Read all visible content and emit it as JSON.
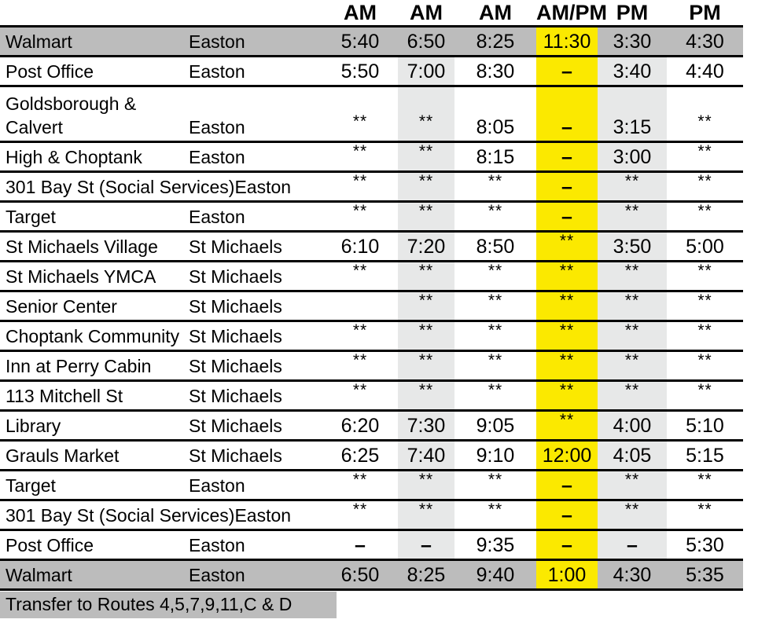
{
  "table": {
    "headers": [
      "AM",
      "AM",
      "AM",
      "AM/PM",
      "PM",
      "PM"
    ],
    "highlight_column_index": 3,
    "shaded_column_indexes": [
      1,
      4
    ],
    "rows": [
      {
        "stop": "Walmart",
        "town": "Easton",
        "times": [
          "5:40",
          "6:50",
          "8:25",
          "11:30",
          "3:30",
          "4:30"
        ],
        "highlight": true
      },
      {
        "stop": "Post Office",
        "town": "Easton",
        "times": [
          "5:50",
          "7:00",
          "8:30",
          "–",
          "3:40",
          "4:40"
        ]
      },
      {
        "stop": "Goldsborough &\nCalvert",
        "town": "Easton",
        "times": [
          "**",
          "**",
          "8:05",
          "–",
          "3:15",
          "**"
        ],
        "twoline": true
      },
      {
        "stop": "High & Choptank",
        "town": "Easton",
        "times": [
          "**",
          "**",
          "8:15",
          "–",
          "3:00",
          "**"
        ]
      },
      {
        "stop": "301 Bay St (Social Services)",
        "town": "Easton",
        "times": [
          "**",
          "**",
          "**",
          "–",
          "**",
          "**"
        ]
      },
      {
        "stop": "Target",
        "town": "Easton",
        "times": [
          "**",
          "**",
          "**",
          "–",
          "**",
          "**"
        ]
      },
      {
        "stop": "St Michaels Village",
        "town": "St Michaels",
        "times": [
          "6:10",
          "7:20",
          "8:50",
          "**",
          "3:50",
          "5:00"
        ]
      },
      {
        "stop": "St Michaels YMCA",
        "town": "St Michaels",
        "times": [
          "**",
          "**",
          "**",
          "**",
          "**",
          "**"
        ]
      },
      {
        "stop": "Senior Center",
        "town": "St Michaels",
        "times": [
          "",
          "**",
          "**",
          "**",
          "**",
          "**"
        ]
      },
      {
        "stop": "Choptank Community",
        "town": "St Michaels",
        "times": [
          "**",
          "**",
          "**",
          "**",
          "**",
          "**"
        ]
      },
      {
        "stop": "Inn at Perry Cabin",
        "town": "St Michaels",
        "times": [
          "**",
          "**",
          "**",
          "**",
          "**",
          "**"
        ]
      },
      {
        "stop": "113 Mitchell St",
        "town": "St Michaels",
        "times": [
          "**",
          "**",
          "**",
          "**",
          "**",
          "**"
        ]
      },
      {
        "stop": "Library",
        "town": "St Michaels",
        "times": [
          "6:20",
          "7:30",
          "9:05",
          "**",
          "4:00",
          "5:10"
        ]
      },
      {
        "stop": "Grauls Market",
        "town": "St Michaels",
        "times": [
          "6:25",
          "7:40",
          "9:10",
          "12:00",
          "4:05",
          "5:15"
        ]
      },
      {
        "stop": "Target",
        "town": "Easton",
        "times": [
          "**",
          "**",
          "**",
          "–",
          "**",
          "**"
        ]
      },
      {
        "stop": "301 Bay St (Social Services)",
        "town": "Easton",
        "times": [
          "**",
          "**",
          "**",
          "–",
          "**",
          "**"
        ]
      },
      {
        "stop": "Post Office",
        "town": "Easton",
        "times": [
          "–",
          "–",
          "9:35",
          "–",
          "–",
          "5:30"
        ]
      },
      {
        "stop": "Walmart",
        "town": "Easton",
        "times": [
          "6:50",
          "8:25",
          "9:40",
          "1:00",
          "4:30",
          "5:35"
        ],
        "highlight": true
      }
    ],
    "footer_note": "Transfer to Routes 4,5,7,9,11,C & D"
  },
  "colors": {
    "highlight_row": "#bcbcbc",
    "shaded_column": "#e7e8e8",
    "time_highlight": "#fbe900",
    "text": "#000000"
  }
}
